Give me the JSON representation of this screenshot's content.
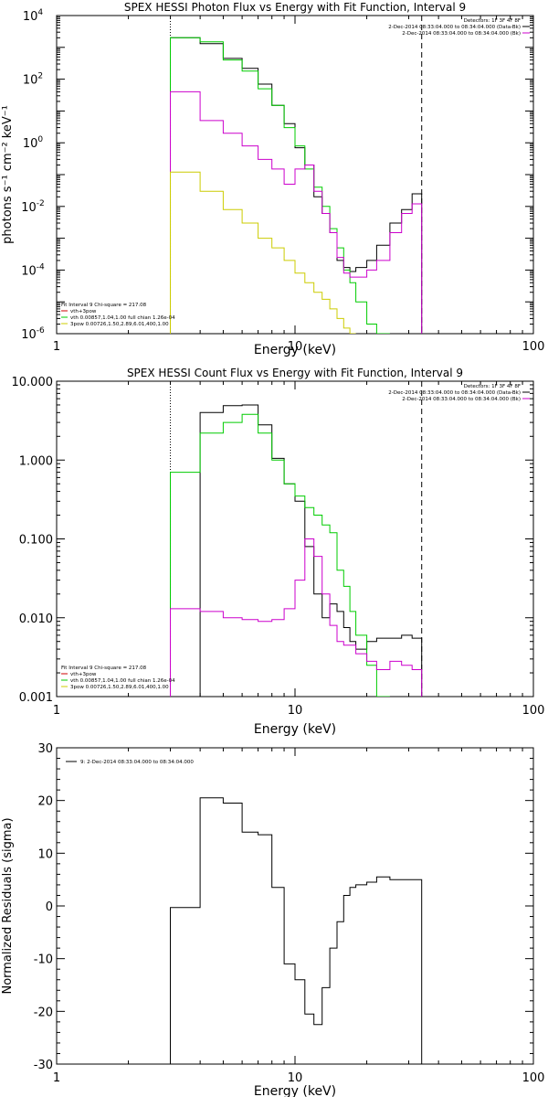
{
  "chart_data": [
    {
      "type": "line",
      "title": "SPEX HESSI Photon Flux vs Energy with Fit Function, Interval 9",
      "xlabel": "Energy (keV)",
      "ylabel": "photons s⁻¹ cm⁻² keV⁻¹",
      "xscale": "log",
      "yscale": "log",
      "xlim": [
        1,
        100
      ],
      "ylim": [
        1e-06,
        10000.0
      ],
      "xticks": [
        {
          "v": 1,
          "label": "1"
        },
        {
          "v": 10,
          "label": "10"
        },
        {
          "v": 100,
          "label": "100"
        }
      ],
      "yticks": [
        {
          "v": 1e-06,
          "mant": "10",
          "exp": "-6"
        },
        {
          "v": 0.0001,
          "mant": "10",
          "exp": "-4"
        },
        {
          "v": 0.01,
          "mant": "10",
          "exp": "-2"
        },
        {
          "v": 1,
          "mant": "10",
          "exp": "0"
        },
        {
          "v": 100,
          "mant": "10",
          "exp": "2"
        },
        {
          "v": 10000,
          "mant": "10",
          "exp": "4"
        }
      ],
      "edges": [
        3,
        4,
        5,
        6,
        7,
        8,
        9,
        10,
        11,
        12,
        13,
        14,
        15,
        16,
        17,
        18,
        20,
        22,
        25,
        28,
        31,
        34
      ],
      "vlines": [
        {
          "x": 3,
          "style": "dotted"
        },
        {
          "x": 34,
          "style": "dashed"
        }
      ],
      "series": [
        {
          "color": "#000000",
          "values": [
            2000,
            1300,
            450,
            220,
            70,
            15,
            4,
            0.7,
            0.2,
            0.02,
            0.006,
            0.0015,
            0.0002,
            0.00012,
            9e-05,
            0.00012,
            0.0002,
            0.0006,
            0.003,
            0.008,
            0.025
          ]
        },
        {
          "color": "#00cc00",
          "values": [
            2000,
            1500,
            400,
            180,
            50,
            15,
            3,
            0.8,
            0.15,
            0.04,
            0.01,
            0.002,
            0.0005,
            0.0001,
            4e-05,
            1e-05,
            2e-06,
            5e-07
          ]
        },
        {
          "color": "#cc00cc",
          "values": [
            40,
            5,
            2,
            0.8,
            0.3,
            0.15,
            0.05,
            0.15,
            0.2,
            0.03,
            0.006,
            0.0015,
            0.00025,
            8e-05,
            6e-05,
            6e-05,
            0.0001,
            0.0002,
            0.0015,
            0.006,
            0.012
          ]
        },
        {
          "color": "#cccc00",
          "values": [
            0.12,
            0.03,
            0.008,
            0.003,
            0.001,
            0.0005,
            0.0002,
            8e-05,
            4e-05,
            2e-05,
            1.2e-05,
            6e-06,
            3e-06,
            1.5e-06,
            8e-07
          ]
        }
      ],
      "legend_top": [
        {
          "text": "Detectors: 1F 3F 4F 8F",
          "color": ""
        },
        {
          "text": "2-Dec-2014 08:33:04.000 to 08:34:04.000 (Data-Bk)",
          "color": "#000000"
        },
        {
          "text": "2-Dec-2014 08:33:04.000 to 08:34:04.000 (Bk)",
          "color": "#cc00cc"
        }
      ],
      "legend_bottom": [
        {
          "text": "Fit Interval 9    Chi-square = 217.08",
          "color": ""
        },
        {
          "text": "vth+3pow",
          "color": "#cc0000"
        },
        {
          "text": "vth 0.00857,1.04,1.00   full chian 1.26e-04",
          "color": "#00cc00"
        },
        {
          "text": "3pow 0.00726,1.50,2.89,6.01,400,1.00",
          "color": "#cccc00"
        }
      ]
    },
    {
      "type": "line",
      "title": "SPEX HESSI Count Flux vs Energy with Fit Function, Interval 9",
      "xlabel": "Energy (keV)",
      "ylabel": "",
      "xscale": "log",
      "yscale": "log",
      "xlim": [
        1,
        100
      ],
      "ylim": [
        0.001,
        10
      ],
      "xticks": [
        {
          "v": 1,
          "label": "1"
        },
        {
          "v": 10,
          "label": "10"
        },
        {
          "v": 100,
          "label": "100"
        }
      ],
      "yticks": [
        {
          "v": 0.001,
          "label": "0.001"
        },
        {
          "v": 0.01,
          "label": "0.010"
        },
        {
          "v": 0.1,
          "label": "0.100"
        },
        {
          "v": 1,
          "label": "1.000"
        },
        {
          "v": 10,
          "label": "10.000"
        }
      ],
      "edges": [
        3,
        4,
        5,
        6,
        7,
        8,
        9,
        10,
        11,
        12,
        13,
        14,
        15,
        16,
        17,
        18,
        20,
        22,
        25,
        28,
        31,
        34
      ],
      "vlines": [
        {
          "x": 3,
          "style": "dotted"
        },
        {
          "x": 34,
          "style": "dashed"
        }
      ],
      "series": [
        {
          "color": "#000000",
          "values": [
            0.0008,
            4.0,
            4.9,
            5.0,
            2.8,
            1.05,
            0.5,
            0.3,
            0.08,
            0.02,
            0.01,
            0.015,
            0.012,
            0.0075,
            0.005,
            0.004,
            0.005,
            0.0055,
            0.0055,
            0.006,
            0.0055
          ]
        },
        {
          "color": "#00cc00",
          "values": [
            0.7,
            2.2,
            3.0,
            3.8,
            2.2,
            1.0,
            0.5,
            0.35,
            0.25,
            0.2,
            0.15,
            0.12,
            0.04,
            0.025,
            0.012,
            0.006,
            0.0025,
            0.0006
          ]
        },
        {
          "color": "#cc00cc",
          "values": [
            0.013,
            0.012,
            0.01,
            0.0095,
            0.009,
            0.0095,
            0.013,
            0.03,
            0.1,
            0.06,
            0.02,
            0.008,
            0.005,
            0.0045,
            0.0045,
            0.0035,
            0.0028,
            0.0022,
            0.0028,
            0.0025,
            0.0022
          ]
        }
      ],
      "legend_top": [
        {
          "text": "Detectors: 1F 3F 4F 8F",
          "color": ""
        },
        {
          "text": "2-Dec-2014 08:33:04.000 to 08:34:04.000 (Data-Bk)",
          "color": "#000000"
        },
        {
          "text": "2-Dec-2014 08:33:04.000 to 08:34:04.000 (Bk)",
          "color": "#cc00cc"
        }
      ],
      "legend_bottom": [
        {
          "text": "Fit Interval 9    Chi-square = 217.08",
          "color": ""
        },
        {
          "text": "vth+3pow",
          "color": "#cc0000"
        },
        {
          "text": "vth 0.00857,1.04,1.00   full chian 1.26e-04",
          "color": "#00cc00"
        },
        {
          "text": "3pow 0.00726,1.50,2.89,6.01,400,1.00",
          "color": "#cccc00"
        }
      ]
    },
    {
      "type": "line",
      "title": "",
      "xlabel": "Energy (keV)",
      "ylabel": "Normalized Residuals (sigma)",
      "xscale": "log",
      "yscale": "linear",
      "xlim": [
        1,
        100
      ],
      "ylim": [
        -30,
        30
      ],
      "xticks": [
        {
          "v": 1,
          "label": "1"
        },
        {
          "v": 10,
          "label": "10"
        },
        {
          "v": 100,
          "label": "100"
        }
      ],
      "yticks": [
        {
          "v": -30,
          "label": "-30"
        },
        {
          "v": -20,
          "label": "-20"
        },
        {
          "v": -10,
          "label": "-10"
        },
        {
          "v": 0,
          "label": "0"
        },
        {
          "v": 10,
          "label": "10"
        },
        {
          "v": 20,
          "label": "20"
        },
        {
          "v": 30,
          "label": "30"
        }
      ],
      "edges": [
        3,
        4,
        5,
        6,
        7,
        8,
        9,
        10,
        11,
        12,
        13,
        14,
        15,
        16,
        17,
        18,
        20,
        22,
        25,
        28,
        31,
        34
      ],
      "vlines": [],
      "series": [
        {
          "color": "#000000",
          "values": [
            -0.3,
            20.5,
            19.5,
            14.0,
            13.5,
            3.5,
            -11.0,
            -14.0,
            -20.5,
            -22.5,
            -15.5,
            -8.0,
            -3.0,
            2.0,
            3.5,
            4.0,
            4.5,
            5.5,
            5.0,
            5.0,
            5.0
          ]
        }
      ],
      "legend_top": [
        {
          "text": "9:  2-Dec-2014 08:33:04.000 to 08:34:04.000",
          "color": "#000000"
        }
      ],
      "legend_bottom": []
    }
  ]
}
